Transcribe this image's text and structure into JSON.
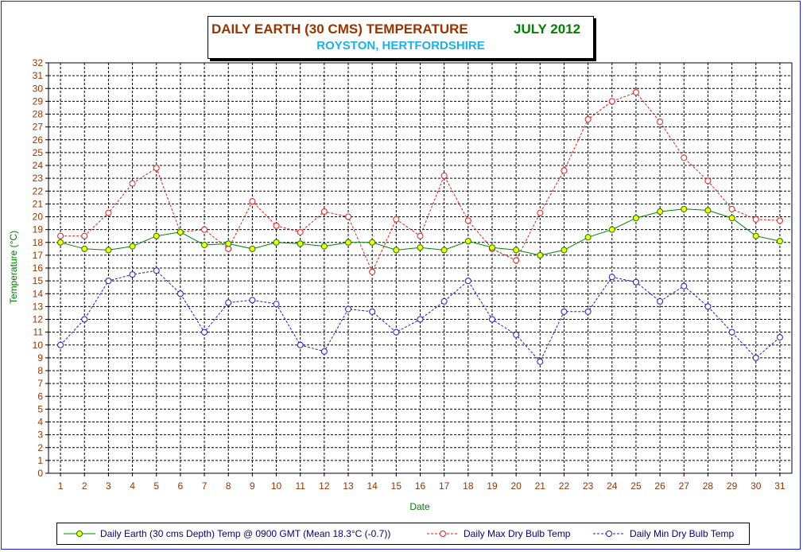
{
  "title": {
    "main": "DAILY EARTH (30 CMS) TEMPERATURE",
    "month": "JULY 2012",
    "subtitle": "ROYSTON, HERTFORDSHIRE"
  },
  "colors": {
    "earth": "#008000",
    "earth_marker": "#ffff00",
    "max": "#e61a1a",
    "min": "#1a1acc",
    "axis_label": "#008000",
    "tick_label": "#993300",
    "frame": "#1a1aff"
  },
  "legend": {
    "earth": "Daily Earth (30 cms Depth) Temp @ 0900 GMT (Mean 18.3°C (-0.7))",
    "max": "Daily Max  Dry Bulb Temp",
    "min": "Daily Min Dry Bulb Temp"
  },
  "chart_data": {
    "type": "line",
    "title": "DAILY EARTH (30 CMS) TEMPERATURE   JULY 2012",
    "subtitle": "ROYSTON, HERTFORDSHIRE",
    "xlabel": "Date",
    "ylabel": "Temperature (°C)",
    "ylim": [
      0,
      32
    ],
    "grid": true,
    "legend_position": "bottom",
    "x": [
      1,
      2,
      3,
      4,
      5,
      6,
      7,
      8,
      9,
      10,
      11,
      12,
      13,
      14,
      15,
      16,
      17,
      18,
      19,
      20,
      21,
      22,
      23,
      24,
      25,
      26,
      27,
      28,
      29,
      30,
      31
    ],
    "series": [
      {
        "name": "Daily Earth (30 cms Depth) Temp @ 0900 GMT (Mean 18.3°C (-0.7))",
        "style": "solid",
        "values": [
          18.0,
          17.5,
          17.4,
          17.7,
          18.5,
          18.8,
          17.8,
          17.9,
          17.5,
          18.0,
          17.9,
          17.7,
          18.0,
          18.0,
          17.4,
          17.6,
          17.4,
          18.1,
          17.6,
          17.4,
          17.0,
          17.4,
          18.4,
          19.0,
          19.9,
          20.4,
          20.6,
          20.5,
          19.9,
          18.5,
          18.1
        ]
      },
      {
        "name": "Daily Max  Dry Bulb Temp",
        "style": "dashed",
        "values": [
          18.5,
          18.5,
          20.3,
          22.6,
          23.8,
          18.8,
          19.0,
          17.5,
          21.2,
          19.3,
          18.8,
          20.4,
          20.0,
          15.7,
          19.8,
          18.5,
          23.2,
          19.7,
          17.5,
          16.6,
          20.3,
          23.6,
          27.6,
          29.0,
          29.7,
          27.4,
          24.6,
          22.8,
          20.6,
          19.8,
          19.7
        ]
      },
      {
        "name": "Daily Min Dry Bulb Temp",
        "style": "dashed",
        "values": [
          10.0,
          12.0,
          15.0,
          15.5,
          15.8,
          14.0,
          11.0,
          13.3,
          13.5,
          13.2,
          10.0,
          9.5,
          12.8,
          12.6,
          11.0,
          12.0,
          13.4,
          15.0,
          12.0,
          10.8,
          8.7,
          12.6,
          12.6,
          15.3,
          14.9,
          13.4,
          14.6,
          13.0,
          11.0,
          9.0,
          10.6
        ]
      }
    ]
  }
}
